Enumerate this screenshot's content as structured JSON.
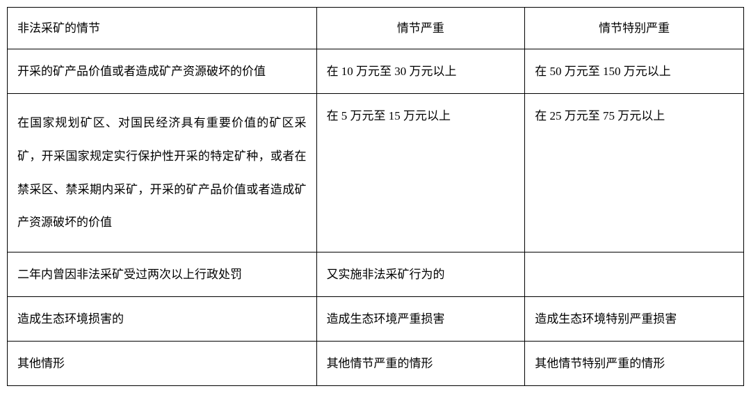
{
  "table": {
    "headers": {
      "col1": "非法采矿的情节",
      "col2": "情节严重",
      "col3": "情节特别严重"
    },
    "rows": [
      {
        "col1": "开采的矿产品价值或者造成矿产资源破坏的价值",
        "col2": "在 10 万元至 30 万元以上",
        "col3": "在 50 万元至 150 万元以上"
      },
      {
        "col1": "在国家规划矿区、对国民经济具有重要价值的矿区采矿，开采国家规定实行保护性开采的特定矿种，或者在禁采区、禁采期内采矿，开采的矿产品价值或者造成矿产资源破坏的价值",
        "col2": "在 5 万元至 15 万元以上",
        "col3": "在 25 万元至 75 万元以上"
      },
      {
        "col1": "二年内曾因非法采矿受过两次以上行政处罚",
        "col2": "又实施非法采矿行为的",
        "col3": ""
      },
      {
        "col1": "造成生态环境损害的",
        "col2": "造成生态环境严重损害",
        "col3": "造成生态环境特别严重损害"
      },
      {
        "col1": "其他情形",
        "col2": "其他情节严重的情形",
        "col3": "其他情节特别严重的情形"
      }
    ]
  }
}
